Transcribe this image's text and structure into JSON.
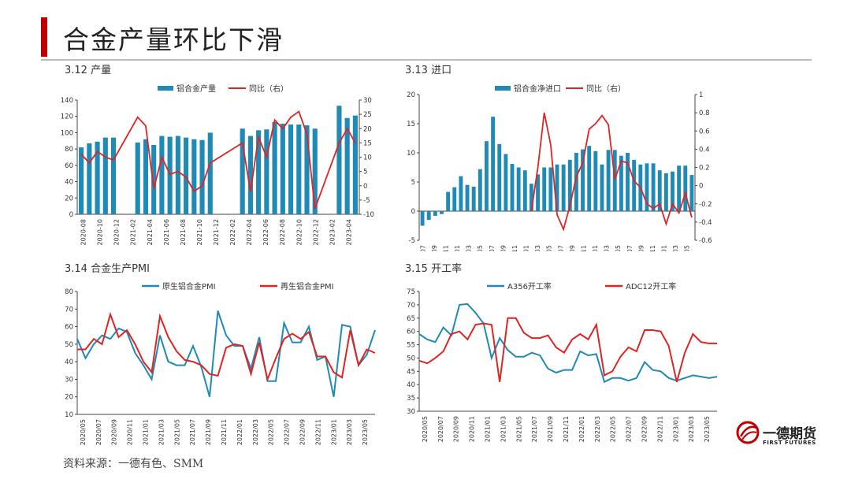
{
  "page": {
    "title": "合金产量环比下滑",
    "source": "资料来源：一德有色、SMM",
    "logo_cn": "一德期货",
    "logo_en": "FIRST FUTURES",
    "accent_color": "#c00000"
  },
  "panels": [
    {
      "caption": "3.12 产量"
    },
    {
      "caption": "3.13 进口"
    },
    {
      "caption": "3.14 合金生产PMI"
    },
    {
      "caption": "3.15 开工率"
    }
  ],
  "chart_data": [
    {
      "type": "bar",
      "legend": [
        "铝合金产量",
        "同比（右）"
      ],
      "colors": {
        "bar": "#1f8ab5",
        "line": "#e02424"
      },
      "x_tick_labels": [
        "2020-08",
        "2020-10",
        "2020-12",
        "2021-02",
        "2021-04",
        "2021-06",
        "2021-08",
        "2021-10",
        "2021-12",
        "2022-02",
        "2022-04",
        "2022-06",
        "2022-08",
        "2022-10",
        "2022-12",
        "2023-02",
        "2023-04"
      ],
      "y_left": {
        "min": 0,
        "max": 140,
        "ticks": [
          "0",
          "20",
          "40",
          "60",
          "80",
          "100",
          "120",
          "140"
        ]
      },
      "y_right": {
        "min": -10,
        "max": 30,
        "ticks": [
          "-10",
          "-5",
          "0",
          "5",
          "10",
          "15",
          "20",
          "25",
          "30"
        ]
      },
      "series": [
        {
          "name": "铝合金产量",
          "kind": "bar",
          "axis": "left",
          "values": [
            82,
            87,
            89,
            94,
            94,
            null,
            null,
            88,
            92,
            85,
            96,
            95,
            96,
            94,
            92,
            91,
            100,
            null,
            null,
            null,
            105,
            96,
            103,
            104,
            113,
            111,
            110,
            110,
            109,
            105,
            null,
            null,
            133,
            118,
            121
          ]
        },
        {
          "name": "同比（右）",
          "kind": "line",
          "axis": "right",
          "values": [
            11,
            8,
            12,
            10,
            9,
            null,
            null,
            24,
            21,
            -1,
            10,
            4,
            5,
            3,
            -2,
            0,
            8,
            null,
            null,
            null,
            15,
            -2,
            17,
            10,
            23,
            20,
            24,
            26,
            18,
            -8,
            null,
            null,
            15,
            20,
            15
          ]
        }
      ]
    },
    {
      "type": "bar",
      "legend": [
        "铝合金净进口",
        "同比（右）"
      ],
      "colors": {
        "bar": "#1f8ab5",
        "line": "#e02424"
      },
      "x_tick_labels": [
        "2019-07",
        "2019-09",
        "2019-11",
        "2020-01",
        "2020-03",
        "2020-05",
        "2020-07",
        "2020-09",
        "2020-11",
        "2021-01",
        "2021-03",
        "2021-05",
        "2021-07",
        "2021-09",
        "2021-11",
        "2022-01",
        "2022-03",
        "2022-05",
        "2022-07",
        "2022-09",
        "2022-11",
        "2023-01",
        "2023-03",
        "2023-05"
      ],
      "y_left": {
        "min": -5,
        "max": 20,
        "ticks": [
          "-5",
          "0",
          "5",
          "10",
          "15",
          "20"
        ]
      },
      "y_right": {
        "min": -0.6,
        "max": 1,
        "ticks": [
          "-0.6",
          "-0.4",
          "-0.2",
          "0",
          "0.2",
          "0.4",
          "0.6",
          "0.8",
          "1"
        ]
      },
      "series": [
        {
          "name": "铝合金净进口",
          "kind": "bar",
          "axis": "left",
          "values": [
            -2.5,
            -1.5,
            -0.8,
            -0.5,
            3.3,
            4.1,
            6,
            4.5,
            4.2,
            7.2,
            12,
            16.2,
            11.5,
            9.8,
            8.1,
            7.5,
            7,
            4.7,
            6.3,
            7.5,
            7.5,
            8,
            8,
            8.8,
            10,
            10.6,
            11.2,
            10.3,
            8,
            10.5,
            10.5,
            9.5,
            10,
            8.8,
            8,
            8.2,
            8.2,
            7,
            6.5,
            6.8,
            7.8,
            7.8,
            6.2
          ]
        },
        {
          "name": "同比（右）",
          "kind": "line",
          "axis": "right",
          "values": [
            null,
            null,
            null,
            null,
            null,
            null,
            null,
            null,
            null,
            null,
            null,
            null,
            null,
            null,
            null,
            null,
            null,
            -0.28,
            0.2,
            0.8,
            0.45,
            -0.32,
            -0.48,
            -0.22,
            0.1,
            0.25,
            0.62,
            0.68,
            0.77,
            0.67,
            0.07,
            0.27,
            0.25,
            0.05,
            -0.02,
            -0.2,
            -0.25,
            -0.2,
            -0.42,
            -0.2,
            -0.3,
            -0.08,
            -0.35
          ]
        }
      ]
    },
    {
      "type": "line",
      "legend": [
        "原生铝合金PMI",
        "再生铝合金PMI"
      ],
      "colors": {
        "s1": "#1f8ab5",
        "s2": "#e02424"
      },
      "x_tick_labels": [
        "2020/05",
        "2020/07",
        "2020/09",
        "2020/11",
        "2021/01",
        "2021/03",
        "2021/05",
        "2021/07",
        "2021/09",
        "2021/11",
        "2022/01",
        "2022/03",
        "2022/05",
        "2022/07",
        "2022/09",
        "2022/11",
        "2023/01",
        "2023/03",
        "2023/05"
      ],
      "y": {
        "min": 10,
        "max": 80,
        "ticks": [
          "10",
          "20",
          "30",
          "40",
          "50",
          "60",
          "70",
          "80"
        ]
      },
      "series": [
        {
          "name": "原生铝合金PMI",
          "values": [
            53,
            42,
            50,
            55,
            53,
            59,
            57,
            45,
            38,
            30,
            55,
            40,
            38,
            38,
            49,
            37,
            20,
            69,
            55,
            49,
            49,
            36,
            54,
            29,
            29,
            62,
            51,
            51,
            60,
            41,
            43,
            20,
            61,
            60,
            38,
            44,
            58
          ]
        },
        {
          "name": "再生铝合金PMI",
          "values": [
            47,
            47,
            53,
            50,
            67,
            54,
            58,
            50,
            40,
            34,
            66,
            54,
            46,
            41,
            40,
            38,
            33,
            32,
            48,
            50,
            49,
            33,
            51,
            30,
            42,
            53,
            56,
            53,
            57,
            43,
            43,
            34,
            31,
            58,
            38,
            47,
            45
          ]
        }
      ]
    },
    {
      "type": "line",
      "legend": [
        "A356开工率",
        "ADC12开工率"
      ],
      "colors": {
        "s1": "#1f8ab5",
        "s2": "#e02424"
      },
      "x_tick_labels": [
        "2020/05",
        "2020/07",
        "2020/09",
        "2020/11",
        "2021/01",
        "2021/03",
        "2021/05",
        "2021/07",
        "2021/09",
        "2021/11",
        "2022/01",
        "2022/03",
        "2022/05",
        "2022/07",
        "2022/09",
        "2022/11",
        "2023/01",
        "2023/03",
        "2023/05"
      ],
      "y": {
        "min": 30,
        "max": 75,
        "ticks": [
          "30",
          "35",
          "40",
          "45",
          "50",
          "55",
          "60",
          "65",
          "70",
          "75"
        ]
      },
      "series": [
        {
          "name": "A356开工率",
          "values": [
            59,
            57,
            56,
            61.5,
            58.5,
            70,
            70.3,
            67,
            63,
            50,
            57.5,
            53,
            50.5,
            50.5,
            52,
            51,
            46,
            44.5,
            45.5,
            45.5,
            52.5,
            51,
            51.5,
            41,
            42.5,
            42.5,
            41.5,
            42.5,
            48.5,
            45.5,
            45,
            42.5,
            41.5,
            42.5,
            43.5,
            43,
            42.5,
            43
          ]
        },
        {
          "name": "ADC12开工率",
          "values": [
            49,
            48,
            50,
            52.5,
            59,
            60,
            57,
            62.5,
            63,
            62.5,
            41,
            65,
            65,
            59.5,
            57.5,
            57.5,
            58.5,
            54,
            52,
            57,
            59,
            57,
            62.5,
            43.5,
            45,
            50.5,
            54,
            52.5,
            60.5,
            60.5,
            60,
            54.5,
            41,
            52,
            59,
            56,
            55.5,
            55.5
          ]
        }
      ]
    }
  ]
}
